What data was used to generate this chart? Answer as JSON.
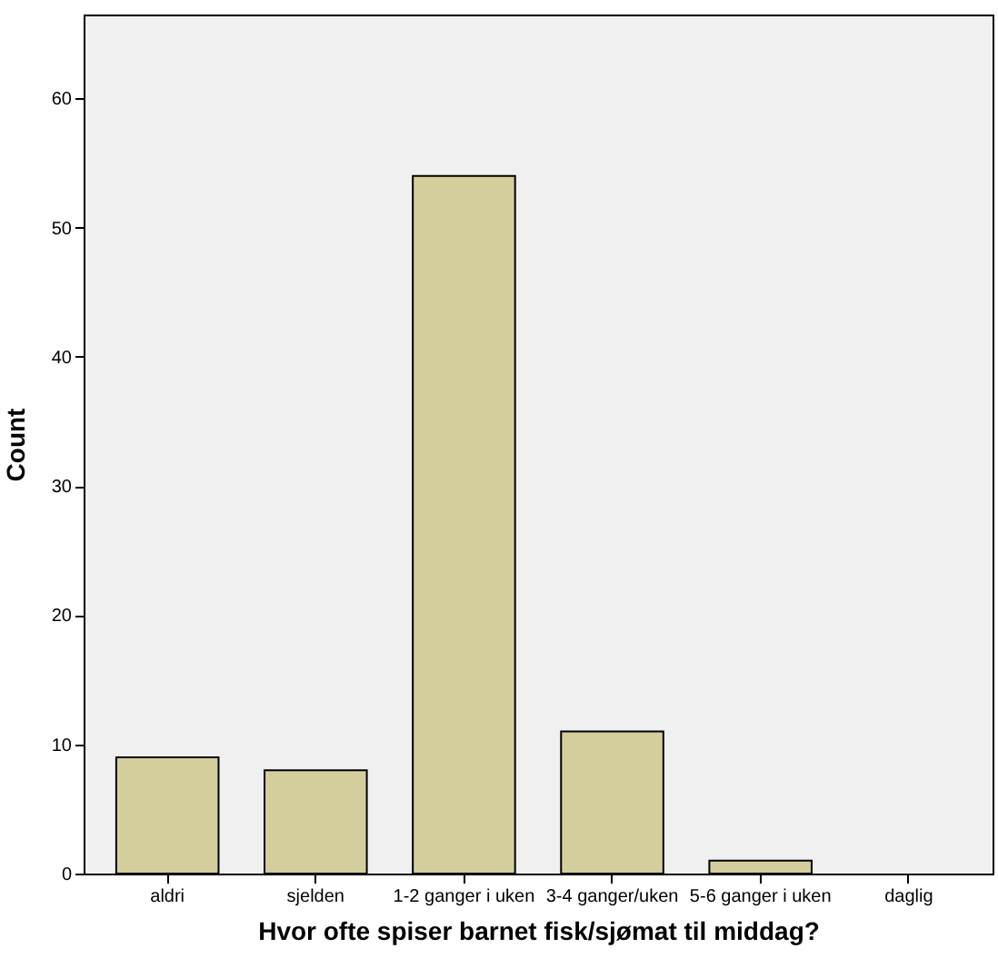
{
  "chart_data": {
    "type": "bar",
    "xlabel": "Hvor ofte spiser barnet fisk/sjømat til middag?",
    "ylabel": "Count",
    "categories": [
      "aldri",
      "sjelden",
      "1-2 ganger i uken",
      "3-4 ganger/uken",
      "5-6 ganger i uken",
      "daglig"
    ],
    "values": [
      9,
      8,
      54,
      11,
      1,
      0
    ],
    "color": "#d3ce9b",
    "ylim": [
      0,
      66.5
    ],
    "yticks": [
      0,
      10,
      20,
      30,
      40,
      50,
      60
    ],
    "grid": false
  }
}
